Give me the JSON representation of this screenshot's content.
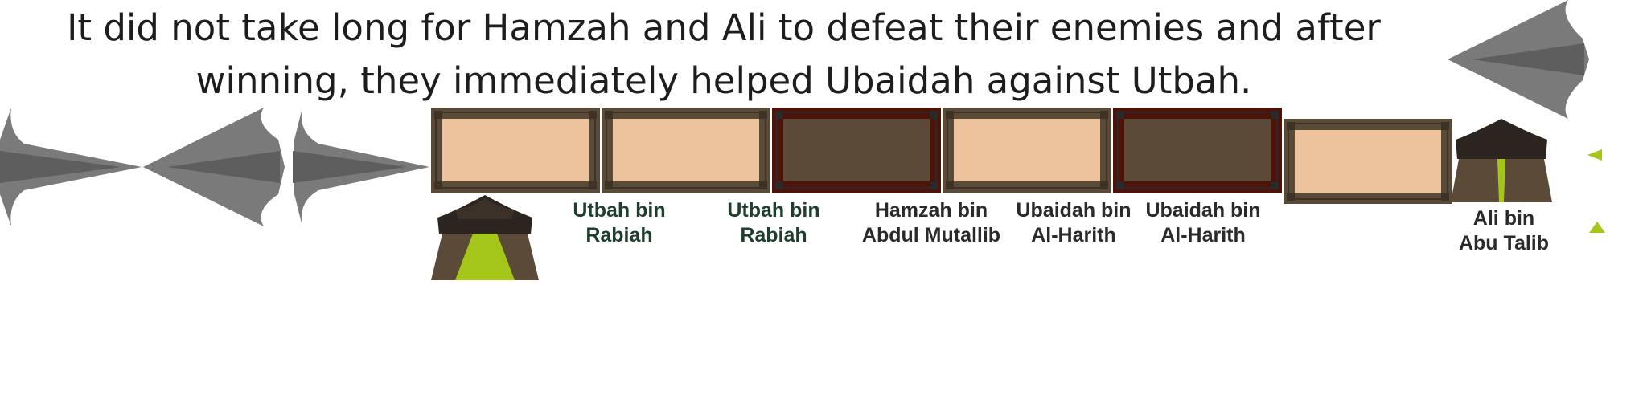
{
  "narration": {
    "text": "It did not take long for Hamzah and Ali to defeat their enemies and after winning, they immediately helped Ubaidah against Utbah."
  },
  "slots": [
    {
      "state": "light",
      "label": ""
    },
    {
      "state": "light",
      "label": "Utbah bin\nRabiah"
    },
    {
      "state": "dark",
      "label": "Utbah bin\nRabiah"
    },
    {
      "state": "light",
      "label": "Hamzah bin\nAbdul Mutallib"
    },
    {
      "state": "dark",
      "label": "Ubaidah bin\nAl-Harith"
    },
    {
      "state": "light",
      "label": "Ubaidah bin\nAl-Harith"
    }
  ],
  "tent_labels": {
    "right": "Ali bin\nAbu Talib"
  },
  "colors": {
    "frame": "#5a4a38",
    "dark_frame": "#4e1208",
    "light_fill": "#ecc39c",
    "dark_fill": "#5b4a37",
    "arrow": "#6d6d6d",
    "tent": "#2c251f",
    "tent_accent": "#a4c61a",
    "label_green": "#1f3f2e"
  },
  "icons": [
    "arrow-icon",
    "tent-icon",
    "triangle-pointer-icon"
  ]
}
